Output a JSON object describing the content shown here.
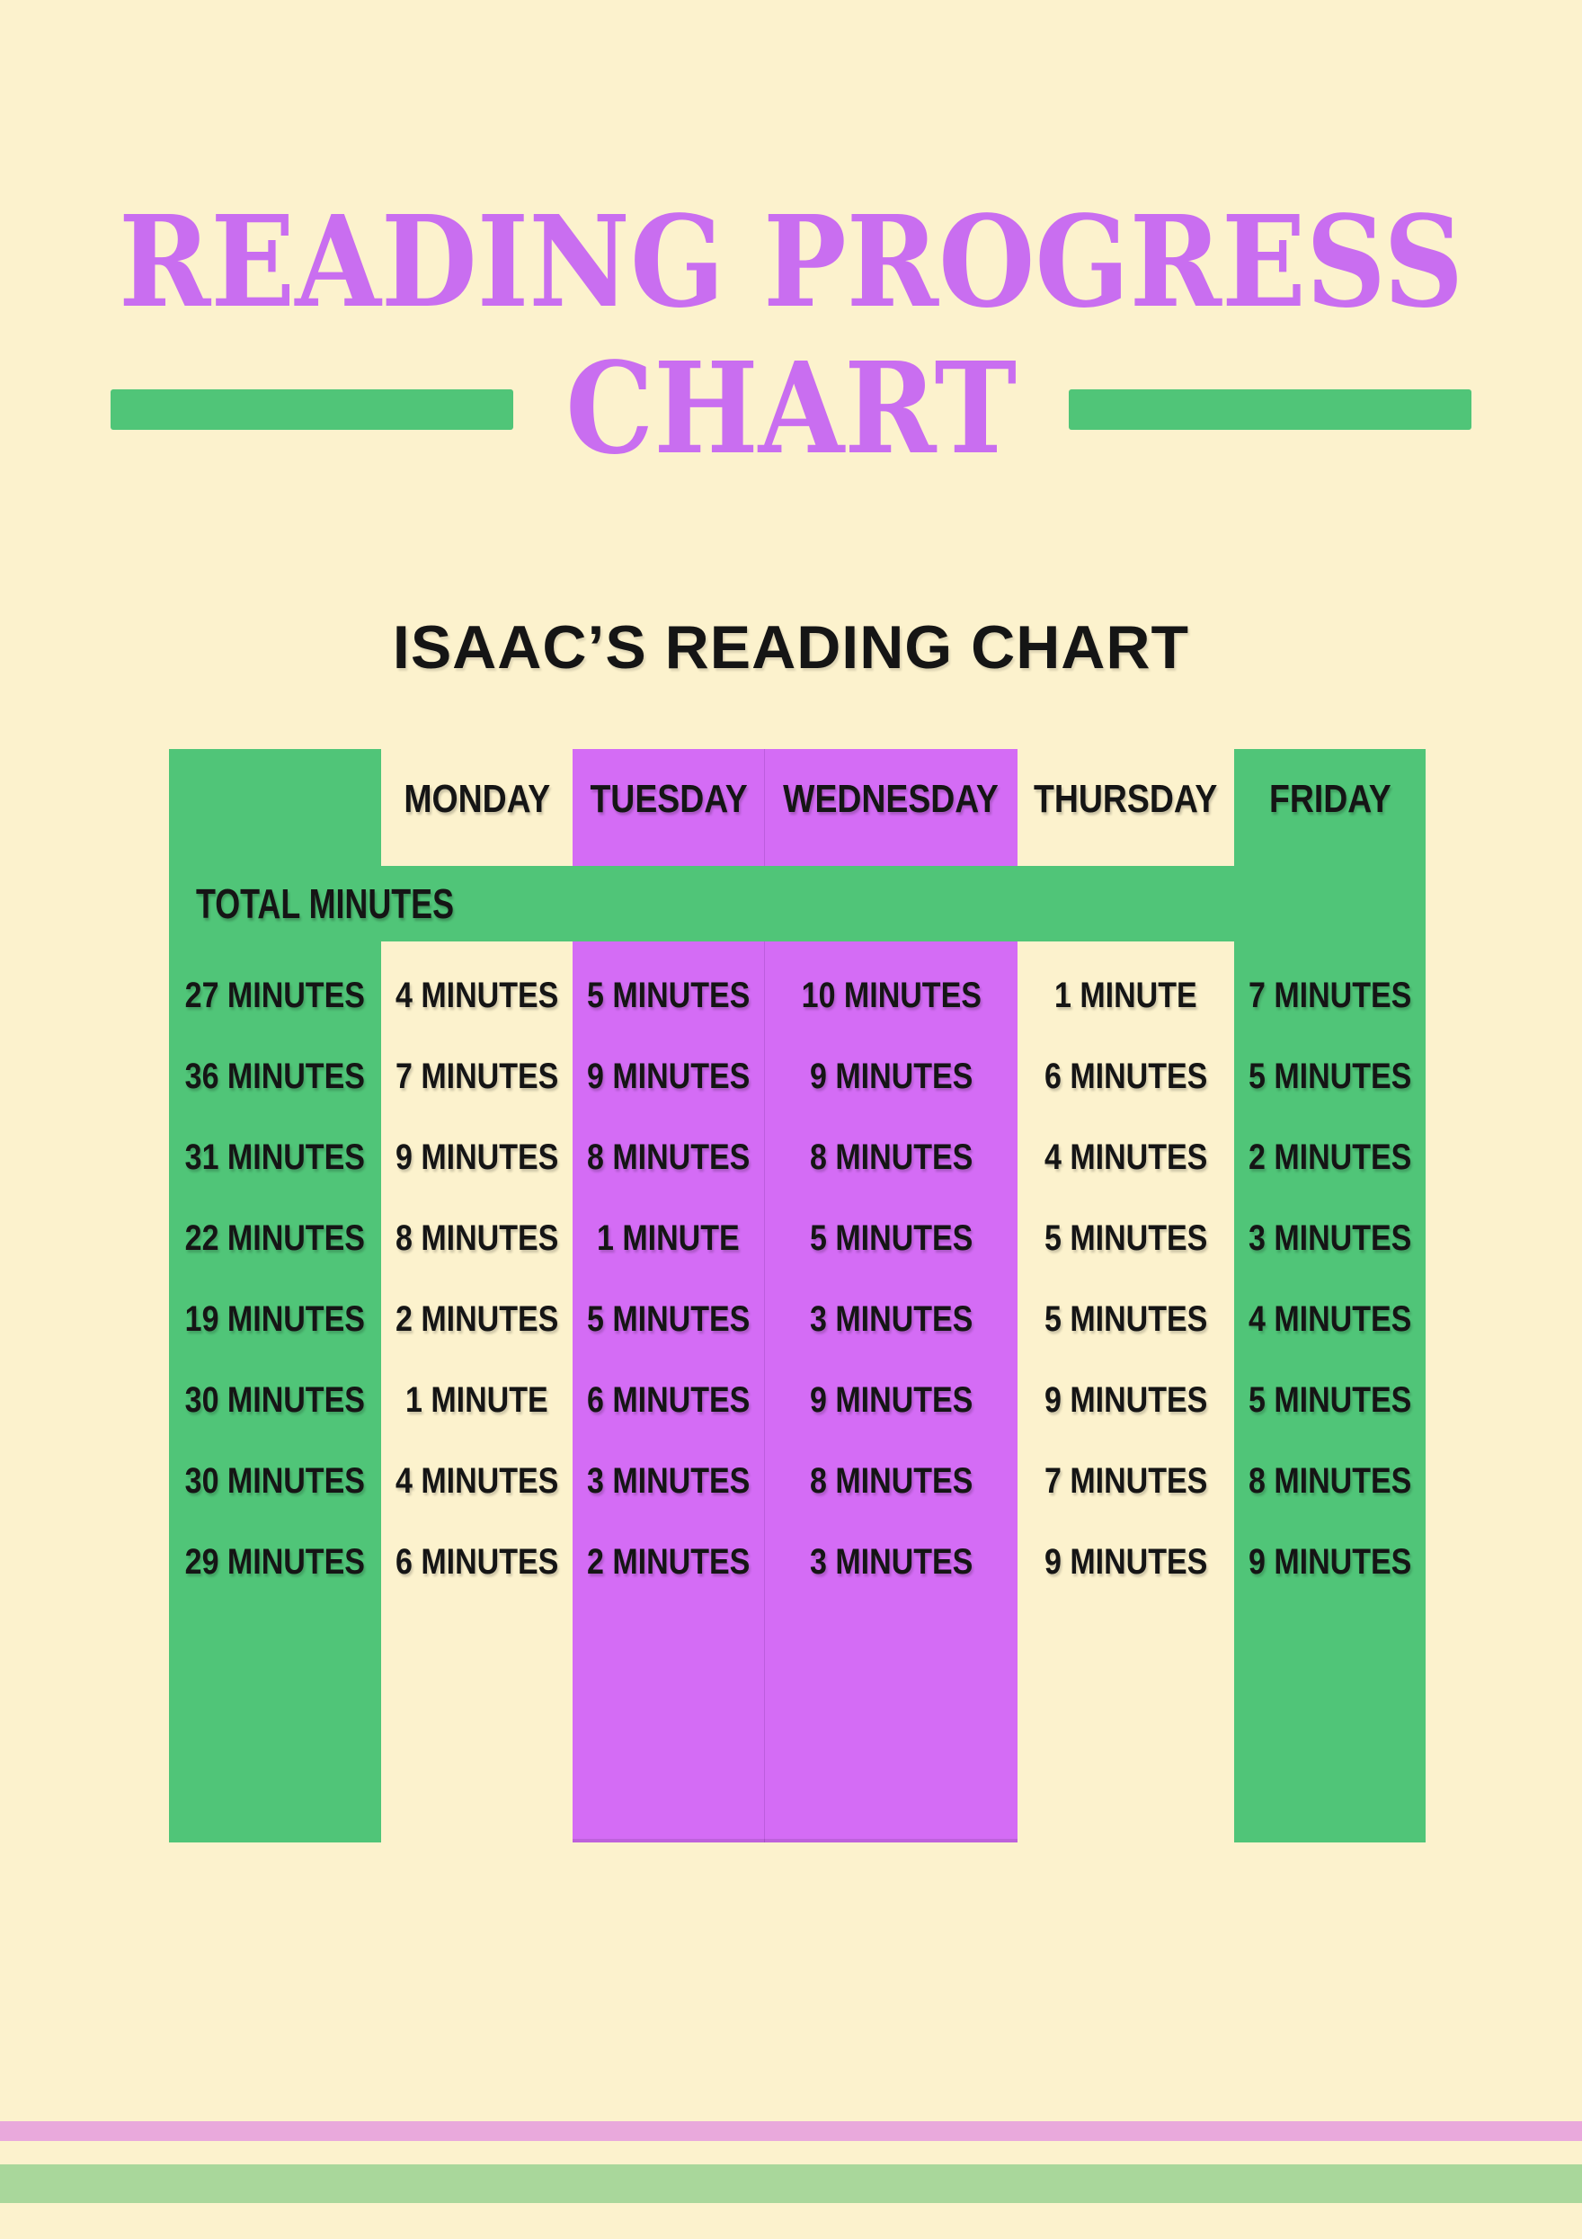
{
  "title": {
    "line1": "READING PROGRESS",
    "line2": "CHART"
  },
  "subtitle": "ISAAC’S READING CHART",
  "table": {
    "day_headers": [
      "MONDAY",
      "TUESDAY",
      "WEDNESDAY",
      "THURSDAY",
      "FRIDAY"
    ],
    "total_label": "TOTAL MINUTES",
    "rows": [
      [
        "27 MINUTES",
        "4 MINUTES",
        "5 MINUTES",
        "10 MINUTES",
        "1 MINUTE",
        "7 MINUTES"
      ],
      [
        "36 MINUTES",
        "7 MINUTES",
        "9 MINUTES",
        "9 MINUTES",
        "6 MINUTES",
        "5 MINUTES"
      ],
      [
        "31 MINUTES",
        "9 MINUTES",
        "8 MINUTES",
        "8 MINUTES",
        "4 MINUTES",
        "2 MINUTES"
      ],
      [
        "22 MINUTES",
        "8 MINUTES",
        "1 MINUTE",
        "5 MINUTES",
        "5 MINUTES",
        "3 MINUTES"
      ],
      [
        "19 MINUTES",
        "2 MINUTES",
        "5 MINUTES",
        "3 MINUTES",
        "5 MINUTES",
        "4 MINUTES"
      ],
      [
        "30 MINUTES",
        "1 MINUTE",
        "6 MINUTES",
        "9 MINUTES",
        "9 MINUTES",
        "5 MINUTES"
      ],
      [
        "30 MINUTES",
        "4 MINUTES",
        "3 MINUTES",
        "8 MINUTES",
        "7 MINUTES",
        "8 MINUTES"
      ],
      [
        "29 MINUTES",
        "6 MINUTES",
        "2 MINUTES",
        "3 MINUTES",
        "9 MINUTES",
        "9 MINUTES"
      ]
    ]
  },
  "chart_data": {
    "type": "table",
    "title": "ISAAC’S READING CHART",
    "unit": "minutes",
    "columns": [
      "TOTAL MINUTES",
      "MONDAY",
      "TUESDAY",
      "WEDNESDAY",
      "THURSDAY",
      "FRIDAY"
    ],
    "rows_minutes": [
      [
        27,
        4,
        5,
        10,
        1,
        7
      ],
      [
        36,
        7,
        9,
        9,
        6,
        5
      ],
      [
        31,
        9,
        8,
        8,
        4,
        2
      ],
      [
        22,
        8,
        1,
        5,
        5,
        3
      ],
      [
        19,
        2,
        5,
        3,
        5,
        4
      ],
      [
        30,
        1,
        6,
        9,
        9,
        5
      ],
      [
        30,
        4,
        3,
        8,
        7,
        8
      ],
      [
        29,
        6,
        2,
        3,
        9,
        9
      ]
    ]
  },
  "colors": {
    "background": "#fcf2cd",
    "title_purple": "#c96ef0",
    "table_green": "#50c578",
    "column_purple": "#d46cf5",
    "footer_pink": "#e9a9dc",
    "footer_green": "#a9d79b",
    "text": "#151515"
  }
}
